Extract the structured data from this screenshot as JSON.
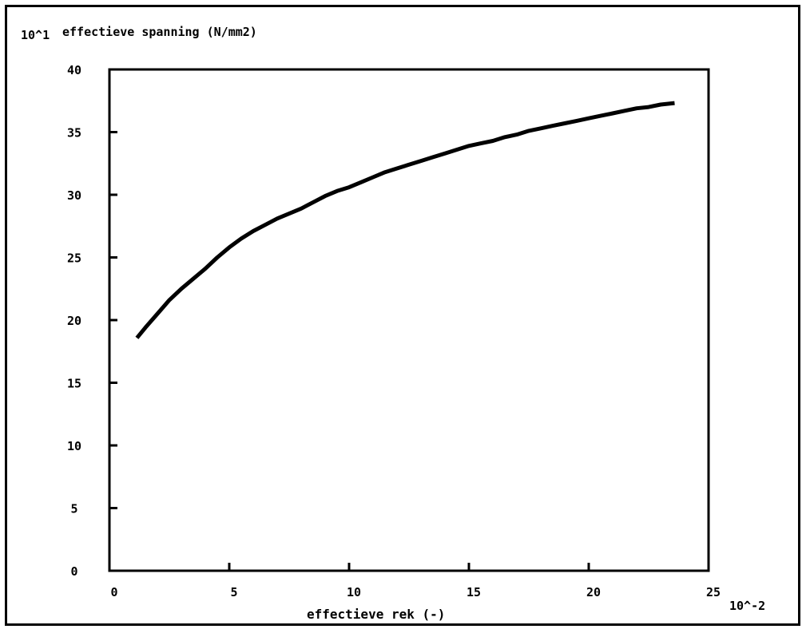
{
  "chart_data": {
    "type": "line",
    "ylabel": "effectieve spanning  (N/mm2)",
    "y_multiplier": "10^1",
    "xlabel": "effectieve rek  (-)",
    "x_multiplier": "10^-2",
    "xlim": [
      0,
      25
    ],
    "ylim": [
      0,
      40
    ],
    "x_ticks": [
      "0",
      "5",
      "10",
      "15",
      "20",
      "25"
    ],
    "y_ticks": [
      "0",
      "5",
      "10",
      "15",
      "20",
      "25",
      "30",
      "35",
      "40"
    ],
    "grid": false,
    "line_color": "#000000",
    "series": [
      {
        "x": [
          1.2,
          1.5,
          2.0,
          2.5,
          3.0,
          3.5,
          4.0,
          4.5,
          5.0,
          5.5,
          6.0,
          6.5,
          7.0,
          7.5,
          8.0,
          8.5,
          9.0,
          9.5,
          10.0,
          10.5,
          11.0,
          11.5,
          12.0,
          12.5,
          13.0,
          13.5,
          14.0,
          14.5,
          15.0,
          15.5,
          16.0,
          16.5,
          17.0,
          17.5,
          18.0,
          18.5,
          19.0,
          19.5,
          20.0,
          20.5,
          21.0,
          21.5,
          22.0,
          22.5,
          23.0,
          23.5
        ],
        "y": [
          18.7,
          19.4,
          20.5,
          21.6,
          22.5,
          23.3,
          24.1,
          25.0,
          25.8,
          26.5,
          27.1,
          27.6,
          28.1,
          28.5,
          28.9,
          29.4,
          29.9,
          30.3,
          30.6,
          31.0,
          31.4,
          31.8,
          32.1,
          32.4,
          32.7,
          33.0,
          33.3,
          33.6,
          33.9,
          34.1,
          34.3,
          34.6,
          34.8,
          35.1,
          35.3,
          35.5,
          35.7,
          35.9,
          36.1,
          36.3,
          36.5,
          36.7,
          36.9,
          37.0,
          37.2,
          37.3
        ]
      }
    ]
  }
}
